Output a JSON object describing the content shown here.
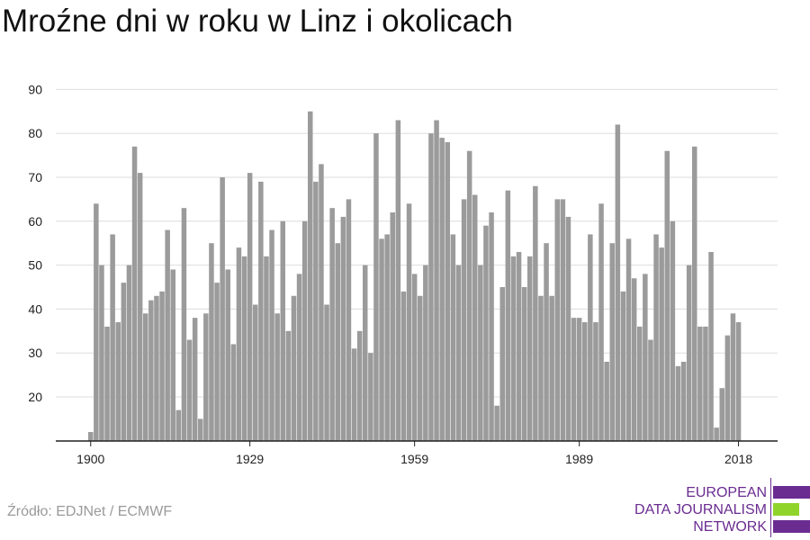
{
  "title": "Mroźne dni w roku w Linz i okolicach",
  "source": "Źródło: EDJNet / ECMWF",
  "logo": {
    "lines": [
      "EUROPEAN",
      "DATA JOURNALISM",
      "NETWORK"
    ],
    "colors": {
      "purple": "#6a2c91",
      "green": "#8fd42b"
    }
  },
  "chart_data": {
    "type": "bar",
    "title": "Mroźne dni w roku w Linz i okolicach",
    "xlabel": "",
    "ylabel": "",
    "x_start": 1900,
    "x_end": 2021,
    "xticks": [
      1900,
      1929,
      1959,
      1989,
      2018
    ],
    "yticks": [
      20,
      30,
      40,
      50,
      60,
      70,
      80,
      90
    ],
    "ylim": [
      10,
      90
    ],
    "grid": true,
    "bar_color": "#9b9b9b",
    "series": [
      {
        "values": [
          12,
          64,
          50,
          36,
          57,
          37,
          46,
          50,
          77,
          71,
          39,
          42,
          43,
          44,
          58,
          49,
          17,
          63,
          33,
          38,
          15,
          39,
          55,
          46,
          70,
          49,
          32,
          54,
          52,
          71,
          41,
          69,
          52,
          58,
          39,
          60,
          35,
          43,
          48,
          60,
          85,
          69,
          73,
          41,
          63,
          55,
          61,
          65,
          31,
          35,
          50,
          30,
          80,
          56,
          57,
          62,
          83,
          44,
          64,
          48,
          43,
          50,
          80,
          83,
          79,
          78,
          57,
          50,
          65,
          76,
          66,
          50,
          59,
          62,
          18,
          45,
          67,
          52,
          53,
          45,
          52,
          68,
          43,
          55,
          43,
          65,
          65,
          61,
          38,
          38,
          37,
          57,
          37,
          64,
          28,
          55,
          82,
          44,
          56,
          47,
          36,
          48,
          33,
          57,
          54,
          76,
          60,
          27,
          28,
          50,
          77,
          36,
          36,
          53,
          13,
          22,
          34,
          39,
          37
        ]
      }
    ]
  }
}
